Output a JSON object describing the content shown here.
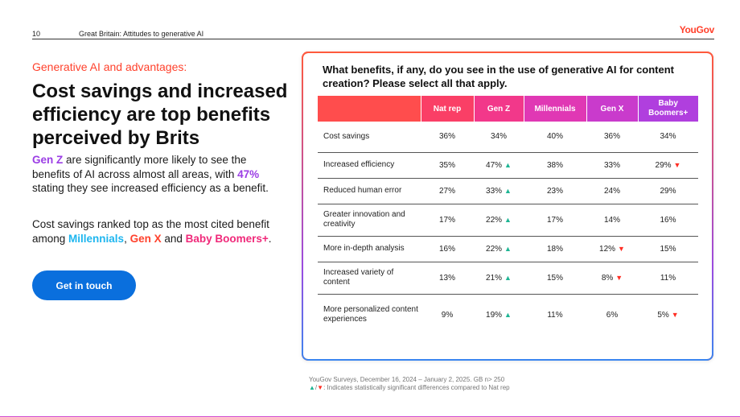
{
  "header": {
    "page_number": "10",
    "breadcrumb": "Great Britain: Attitudes to generative AI",
    "logo": "YouGov"
  },
  "left": {
    "kicker": "Generative AI and advantages:",
    "headline": "Cost savings and increased efficiency are top benefits perceived by Brits",
    "p1": {
      "gen_z": "Gen Z",
      "text_a": " are significantly more likely to see the benefits of AI across almost all areas, with ",
      "pct": "47%",
      "text_b": " stating they see increased efficiency as a benefit."
    },
    "p2": {
      "text_a": "Cost savings ranked top as the most cited benefit among ",
      "millennials": "Millennials",
      "comma": ", ",
      "gen_x": "Gen X",
      "and": " and ",
      "boomers": "Baby Boomers+",
      "end": "."
    },
    "cta_label": "Get in touch"
  },
  "card": {
    "question": "What benefits, if any, do you see in the use of generative AI for content creation? Please select all that apply.",
    "columns": [
      "Nat rep",
      "Gen Z",
      "Millennials",
      "Gen X",
      "Baby Boomers+"
    ],
    "rows": [
      {
        "label": "Cost savings",
        "cells": [
          {
            "v": "36%"
          },
          {
            "v": "34%"
          },
          {
            "v": "40%"
          },
          {
            "v": "36%"
          },
          {
            "v": "34%"
          }
        ]
      },
      {
        "label": "Increased efficiency",
        "cells": [
          {
            "v": "35%"
          },
          {
            "v": "47%",
            "sig": "up"
          },
          {
            "v": "38%"
          },
          {
            "v": "33%"
          },
          {
            "v": "29%",
            "sig": "down"
          }
        ]
      },
      {
        "label": "Reduced human error",
        "cells": [
          {
            "v": "27%"
          },
          {
            "v": "33%",
            "sig": "up"
          },
          {
            "v": "23%"
          },
          {
            "v": "24%"
          },
          {
            "v": "29%"
          }
        ]
      },
      {
        "label": "Greater innovation and creativity",
        "cells": [
          {
            "v": "17%"
          },
          {
            "v": "22%",
            "sig": "up"
          },
          {
            "v": "17%"
          },
          {
            "v": "14%"
          },
          {
            "v": "16%"
          }
        ]
      },
      {
        "label": "More in-depth analysis",
        "cells": [
          {
            "v": "16%"
          },
          {
            "v": "22%",
            "sig": "up"
          },
          {
            "v": "18%"
          },
          {
            "v": "12%",
            "sig": "down"
          },
          {
            "v": "15%"
          }
        ]
      },
      {
        "label": "Increased variety of content",
        "cells": [
          {
            "v": "13%"
          },
          {
            "v": "21%",
            "sig": "up"
          },
          {
            "v": "15%"
          },
          {
            "v": "8%",
            "sig": "down"
          },
          {
            "v": "11%"
          }
        ]
      },
      {
        "label": "More personalized content experiences",
        "cells": [
          {
            "v": "9%"
          },
          {
            "v": "19%",
            "sig": "up"
          },
          {
            "v": "11%"
          },
          {
            "v": "6%"
          },
          {
            "v": "5%",
            "sig": "down"
          }
        ]
      }
    ]
  },
  "footnote": {
    "line1": "YouGov Surveys, December 16, 2024 – January 2, 2025. GB n> 250",
    "line2_up": "▲",
    "line2_sep": "/",
    "line2_down": "▼",
    "line2_text": ": Indicates statistically significant differences compared to Nat rep"
  },
  "symbols": {
    "up": "▲",
    "down": "▼"
  },
  "colors": {
    "brand_red": "#ff412c",
    "gen_z_purple": "#9b3de5",
    "millennials_blue": "#1eb6ef",
    "boomers_pink": "#f0297a",
    "cta_blue": "#0a6fdd",
    "sig_up": "#1fb594",
    "sig_down": "#ff2e24"
  }
}
